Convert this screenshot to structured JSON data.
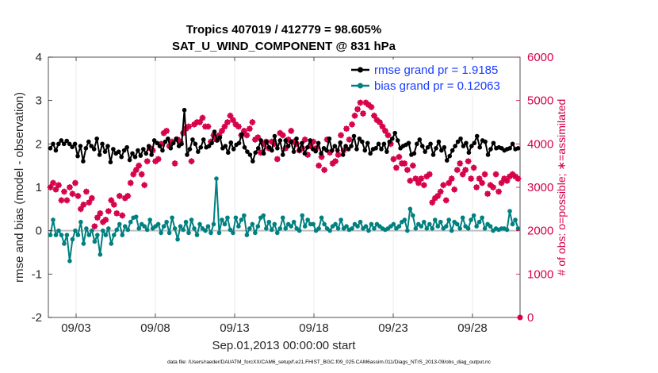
{
  "chart_data": {
    "type": "line",
    "title_line1": "Tropics 407019 / 412779 = 98.605%",
    "title_line2": "SAT_U_WIND_COMPONENT @ 831 hPa",
    "xlabel": "Sep.01,2013 00:00:00 start",
    "ylabel_left": "rmse and bias (model - observation)",
    "ylabel_right": "# of obs: o=possible; ∗=assimilated",
    "footnote": "data file: /Users/raeder/DAI/ATM_forcXX/CAM6_setup/f.e21.FHIST_BGC.f09_025.CAM6assim.011/Diags_NTrS_2013-09/obs_diag_output.nc",
    "x_tick_labels": [
      "09/03",
      "09/08",
      "09/13",
      "09/18",
      "09/23",
      "09/28"
    ],
    "x_tick_values": [
      3,
      8,
      13,
      18,
      23,
      28
    ],
    "xlim": [
      1.25,
      31.0
    ],
    "ylim_left": [
      -2,
      4
    ],
    "y_ticks_left": [
      "-2",
      "-1",
      "0",
      "1",
      "2",
      "3",
      "4"
    ],
    "ylim_right": [
      0,
      6000
    ],
    "y_ticks_right": [
      "0",
      "1000",
      "2000",
      "3000",
      "4000",
      "5000",
      "6000"
    ],
    "colors": {
      "rmse": "#000000",
      "bias": "#008080",
      "obs": "#d6004a",
      "zero_line": "#bfbfbf",
      "legend_text": "#1a3bff"
    },
    "series": [
      {
        "name": "rmse grand pr = 1.9185",
        "values": [
          1.9,
          2.0,
          1.85,
          2.0,
          2.08,
          2.0,
          2.07,
          2.0,
          1.93,
          2.0,
          1.72,
          1.95,
          1.6,
          1.9,
          2.05,
          1.95,
          1.88,
          2.12,
          1.75,
          2.0,
          1.82,
          1.95,
          1.58,
          1.88,
          1.78,
          1.82,
          1.7,
          1.85,
          1.92,
          1.63,
          1.78,
          1.7,
          1.85,
          1.73,
          1.88,
          1.78,
          1.95,
          1.75,
          2.08,
          2.02,
          1.95,
          1.85,
          2.05,
          2.12,
          1.9,
          2.02,
          2.12,
          1.95,
          2.0,
          2.78,
          1.75,
          1.88,
          2.1,
          2.0,
          1.82,
          1.92,
          2.1,
          1.92,
          1.95,
          2.02,
          2.28,
          2.08,
          2.15,
          1.9,
          1.95,
          1.8,
          2.03,
          1.88,
          1.98,
          2.02,
          2.22,
          1.92,
          1.82,
          1.75,
          1.6,
          1.8,
          1.9,
          2.08,
          1.78,
          2.05,
          1.92,
          1.85,
          2.18,
          1.9,
          2.08,
          1.75,
          2.08,
          1.95,
          2.05,
          1.82,
          2.12,
          1.85,
          2.02,
          1.78,
          1.92,
          2.08,
          1.88,
          1.83,
          2.02,
          1.78,
          1.9,
          1.85,
          2.12,
          1.85,
          1.95,
          1.85,
          2.03,
          1.75,
          1.95,
          1.88,
          1.95,
          2.18,
          1.88,
          2.12,
          2.05,
          1.85,
          2.02,
          1.78,
          1.88,
          1.9,
          2.0,
          1.88,
          2.0,
          1.82,
          2.05,
          2.12,
          2.25,
          2.08,
          1.9,
          1.95,
          1.98,
          2.02,
          1.75,
          1.78,
          2.0,
          2.1,
          1.95,
          1.82,
          1.92,
          2.0,
          1.75,
          1.9,
          2.05,
          1.85,
          1.92,
          1.62,
          1.72,
          1.85,
          1.95,
          2.05,
          2.12,
          1.95,
          2.02,
          1.8,
          1.95,
          2.02,
          2.18,
          1.92,
          2.08,
          2.05,
          1.75,
          1.88,
          2.02,
          1.9,
          1.92,
          1.9,
          1.85,
          1.88,
          1.9,
          2.0,
          1.88,
          1.9
        ]
      },
      {
        "name": "bias grand pr = 0.12063",
        "values": [
          -0.1,
          0.25,
          -0.1,
          0.0,
          -0.1,
          -0.3,
          -0.1,
          -0.7,
          -0.2,
          0.0,
          -0.1,
          0.2,
          -0.3,
          0.05,
          -0.1,
          0.0,
          -0.25,
          -0.1,
          -0.55,
          0.0,
          -0.1,
          0.05,
          -0.3,
          -0.1,
          0.02,
          0.15,
          -0.1,
          0.1,
          0.02,
          0.2,
          0.3,
          0.32,
          0.05,
          0.15,
          0.1,
          0.02,
          0.25,
          0.05,
          0.1,
          0.15,
          -0.05,
          0.1,
          0.2,
          -0.05,
          0.3,
          0.05,
          -0.2,
          0.1,
          0.02,
          0.2,
          -0.05,
          0.25,
          0.05,
          -0.1,
          0.15,
          0.05,
          0.0,
          0.1,
          -0.05,
          0.15,
          1.2,
          -0.05,
          0.25,
          0.15,
          0.3,
          0.02,
          -0.05,
          0.3,
          0.1,
          0.25,
          0.35,
          -0.1,
          0.05,
          0.15,
          -0.05,
          0.1,
          0.3,
          0.35,
          0.05,
          0.2,
          0.02,
          0.15,
          -0.05,
          0.05,
          0.3,
          0.05,
          0.15,
          0.1,
          0.2,
          0.05,
          0.0,
          0.35,
          0.1,
          0.25,
          0.15,
          0.15,
          0.0,
          0.05,
          0.3,
          0.15,
          0.05,
          0.0,
          0.1,
          0.15,
          0.05,
          0.25,
          0.05,
          0.1,
          0.02,
          0.05,
          0.15,
          0.1,
          0.2,
          0.05,
          0.1,
          0.0,
          0.15,
          0.05,
          0.15,
          0.1,
          0.05,
          0.02,
          0.05,
          0.1,
          0.15,
          0.05,
          0.1,
          0.2,
          0.25,
          0.0,
          0.5,
          0.35,
          0.05,
          0.15,
          0.1,
          0.2,
          0.05,
          0.15,
          0.05,
          0.25,
          0.1,
          0.2,
          0.05,
          0.1,
          0.25,
          0.0,
          0.2,
          0.15,
          0.05,
          0.3,
          0.1,
          0.05,
          0.25,
          0.35,
          0.1,
          0.2,
          0.3,
          0.05,
          0.15,
          0.1,
          0.0,
          0.05,
          0.02,
          0.05,
          0.05,
          0.02,
          0.45,
          0.15,
          0.25,
          0.05
        ]
      }
    ],
    "obs_possible": {
      "values": [
        3000,
        3100,
        2950,
        3050,
        2700,
        2900,
        2700,
        3000,
        2850,
        3100,
        2800,
        2500,
        2600,
        2900,
        2650,
        2750,
        2100,
        2300,
        2400,
        2200,
        2250,
        2450,
        2700,
        2600,
        2400,
        2800,
        2350,
        2750,
        2800,
        3100,
        3300,
        3400,
        3500,
        3300,
        3050,
        3600,
        3900,
        3850,
        3600,
        3650,
        4000,
        4250,
        4300,
        3950,
        4050,
        3550,
        4100,
        4050,
        4250,
        4350,
        4400,
        3600,
        4450,
        4500,
        4500,
        4600,
        4400,
        4400,
        4050,
        4200,
        4100,
        4200,
        4300,
        4400,
        4500,
        4650,
        4550,
        4450,
        4400,
        4200,
        4300,
        4200,
        4350,
        4500,
        4100,
        4150,
        3800,
        4000,
        4050,
        3900,
        4050,
        4000,
        3650,
        4250,
        4200,
        3900,
        4100,
        4300,
        4050,
        4000,
        3850,
        3900,
        4100,
        3750,
        3950,
        4050,
        3900,
        3500,
        3700,
        3400,
        4100,
        3800,
        3550,
        3600,
        3750,
        4200,
        3850,
        4350,
        4100,
        4450,
        4650,
        4800,
        4950,
        4700,
        4950,
        4900,
        4850,
        4650,
        4550,
        4500,
        4400,
        4300,
        4200,
        4000,
        3650,
        3450,
        3700,
        3550,
        3550,
        3400,
        3150,
        3500,
        3200,
        3100,
        3200,
        3050,
        3250,
        3300,
        2650,
        2750,
        2800,
        2900,
        3050,
        2700,
        3100,
        3200,
        2950,
        3400,
        3550,
        3300,
        3400,
        3600,
        3200,
        3450,
        3000,
        3200,
        3100,
        3300,
        2850,
        3050,
        3000,
        3300,
        2900,
        3100,
        3200,
        3150,
        3250,
        3300,
        3250,
        3200
      ]
    }
  }
}
